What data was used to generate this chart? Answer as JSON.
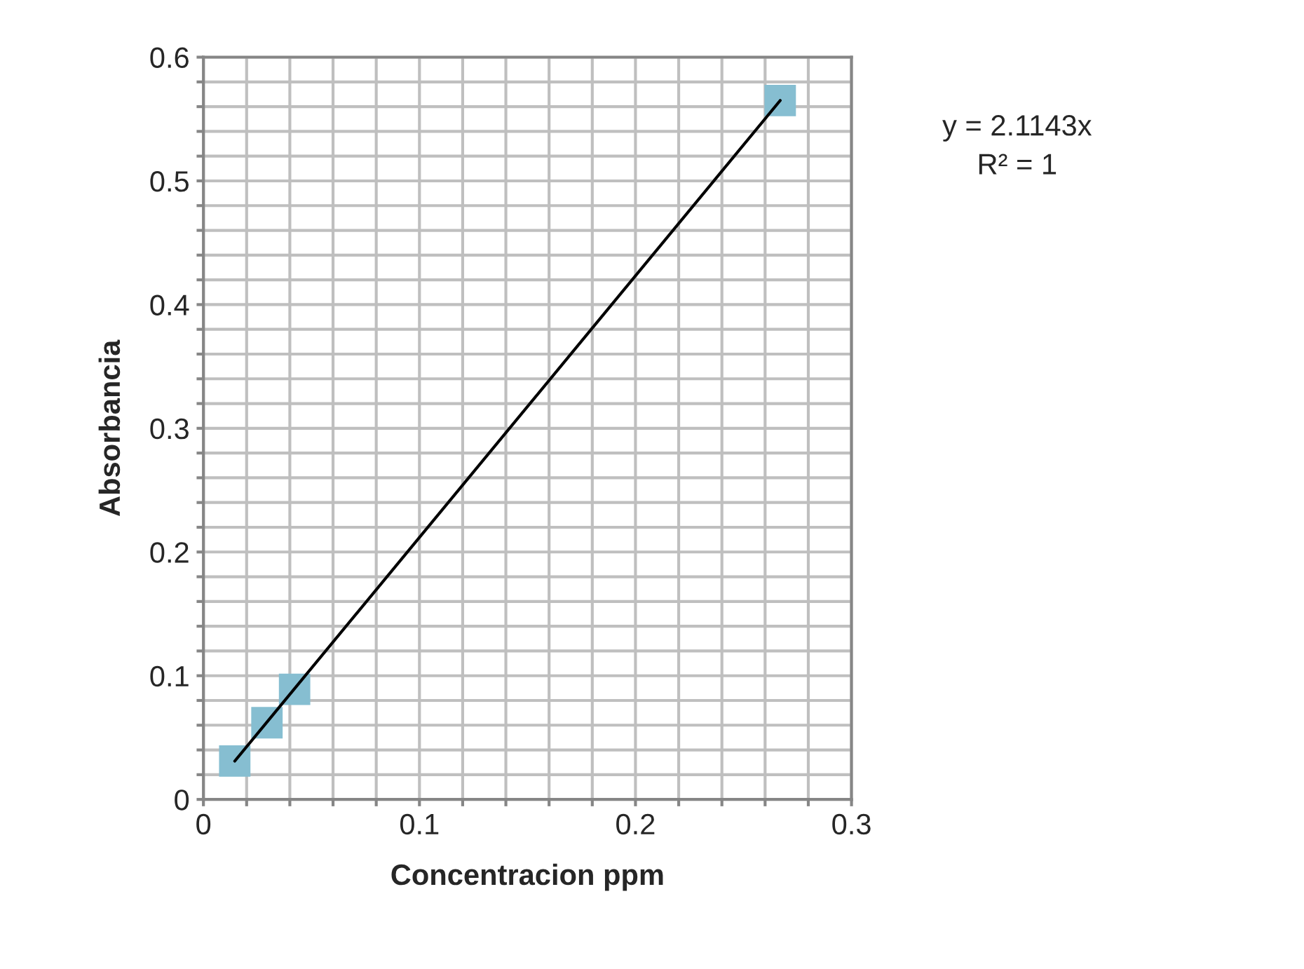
{
  "chart_data": {
    "type": "scatter",
    "xlabel": "Concentracion ppm",
    "ylabel": "Absorbancia",
    "series": [
      {
        "color": "#86bed1",
        "marker": "square",
        "x": [
          0.0145,
          0.0294,
          0.0422,
          0.267
        ],
        "values": [
          0.031,
          0.062,
          0.089,
          0.565
        ]
      },
      {
        "type": "line",
        "color": "#000000",
        "marker": "none",
        "line_style": "solid",
        "x": [
          0.0145,
          0.267
        ],
        "values": [
          0.031,
          0.565
        ]
      }
    ],
    "annotations": [
      "y = 2.1143x",
      "R² = 1"
    ],
    "xlim": [
      0,
      0.3
    ],
    "ylim": [
      0,
      0.6
    ],
    "xticks": [
      0,
      {
        "value": 0.02,
        "label": null
      },
      {
        "value": 0.04,
        "label": null
      },
      {
        "value": 0.06,
        "label": null
      },
      {
        "value": 0.08,
        "label": null
      },
      0.1,
      {
        "value": 0.12,
        "label": null
      },
      {
        "value": 0.14,
        "label": null
      },
      {
        "value": 0.16,
        "label": null
      },
      {
        "value": 0.18,
        "label": null
      },
      0.2,
      {
        "value": 0.22,
        "label": null
      },
      {
        "value": 0.24,
        "label": null
      },
      {
        "value": 0.26,
        "label": null
      },
      {
        "value": 0.28,
        "label": null
      },
      0.3
    ],
    "yticks": [
      0,
      {
        "value": 0.02,
        "label": null
      },
      {
        "value": 0.04,
        "label": null
      },
      {
        "value": 0.06,
        "label": null
      },
      {
        "value": 0.08,
        "label": null
      },
      0.1,
      {
        "value": 0.12,
        "label": null
      },
      {
        "value": 0.14,
        "label": null
      },
      {
        "value": 0.16,
        "label": null
      },
      {
        "value": 0.18,
        "label": null
      },
      0.2,
      {
        "value": 0.22,
        "label": null
      },
      {
        "value": 0.24,
        "label": null
      },
      {
        "value": 0.26,
        "label": null
      },
      {
        "value": 0.28,
        "label": null
      },
      0.3,
      {
        "value": 0.32,
        "label": null
      },
      {
        "value": 0.34,
        "label": null
      },
      {
        "value": 0.36,
        "label": null
      },
      {
        "value": 0.38,
        "label": null
      },
      0.4,
      {
        "value": 0.42,
        "label": null
      },
      {
        "value": 0.44,
        "label": null
      },
      {
        "value": 0.46,
        "label": null
      },
      {
        "value": 0.48,
        "label": null
      },
      0.5,
      {
        "value": 0.52,
        "label": null
      },
      {
        "value": 0.54,
        "label": null
      },
      {
        "value": 0.56,
        "label": null
      },
      {
        "value": 0.58,
        "label": null
      },
      0.6
    ],
    "grid": true,
    "legend": false
  }
}
